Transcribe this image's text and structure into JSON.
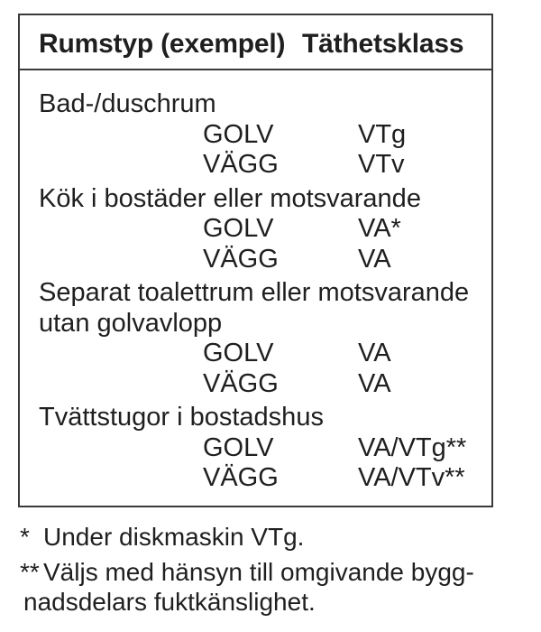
{
  "theme": {
    "background": "#ffffff",
    "text_color": "#1f1f1f",
    "border_color": "#3a3a3a"
  },
  "table": {
    "header": {
      "col1": "Rumstyp (exempel)",
      "col2": "Täthetsklass"
    },
    "groups": [
      {
        "room": [
          "Bad-/duschrum"
        ],
        "rows": [
          {
            "surface": "GOLV",
            "class": "VTg"
          },
          {
            "surface": "VÄGG",
            "class": "VTv"
          }
        ]
      },
      {
        "room": [
          "Kök i bostäder eller motsvarande"
        ],
        "rows": [
          {
            "surface": "GOLV",
            "class": "VA*"
          },
          {
            "surface": "VÄGG",
            "class": "VA"
          }
        ]
      },
      {
        "room": [
          "Separat toalettrum eller motsvarande",
          "utan golvavlopp"
        ],
        "rows": [
          {
            "surface": "GOLV",
            "class": "VA"
          },
          {
            "surface": "VÄGG",
            "class": "VA"
          }
        ]
      },
      {
        "room": [
          "Tvättstugor i bostadshus"
        ],
        "rows": [
          {
            "surface": "GOLV",
            "class": "VA/VTg**"
          },
          {
            "surface": "VÄGG",
            "class": "VA/VTv**"
          }
        ]
      }
    ]
  },
  "footnotes": [
    {
      "marker": "*",
      "lines": [
        "Under diskmaskin VTg."
      ]
    },
    {
      "marker": "**",
      "lines": [
        "Väljs med hänsyn till omgivande bygg-",
        "nadsdelars fuktkänslighet."
      ]
    }
  ]
}
